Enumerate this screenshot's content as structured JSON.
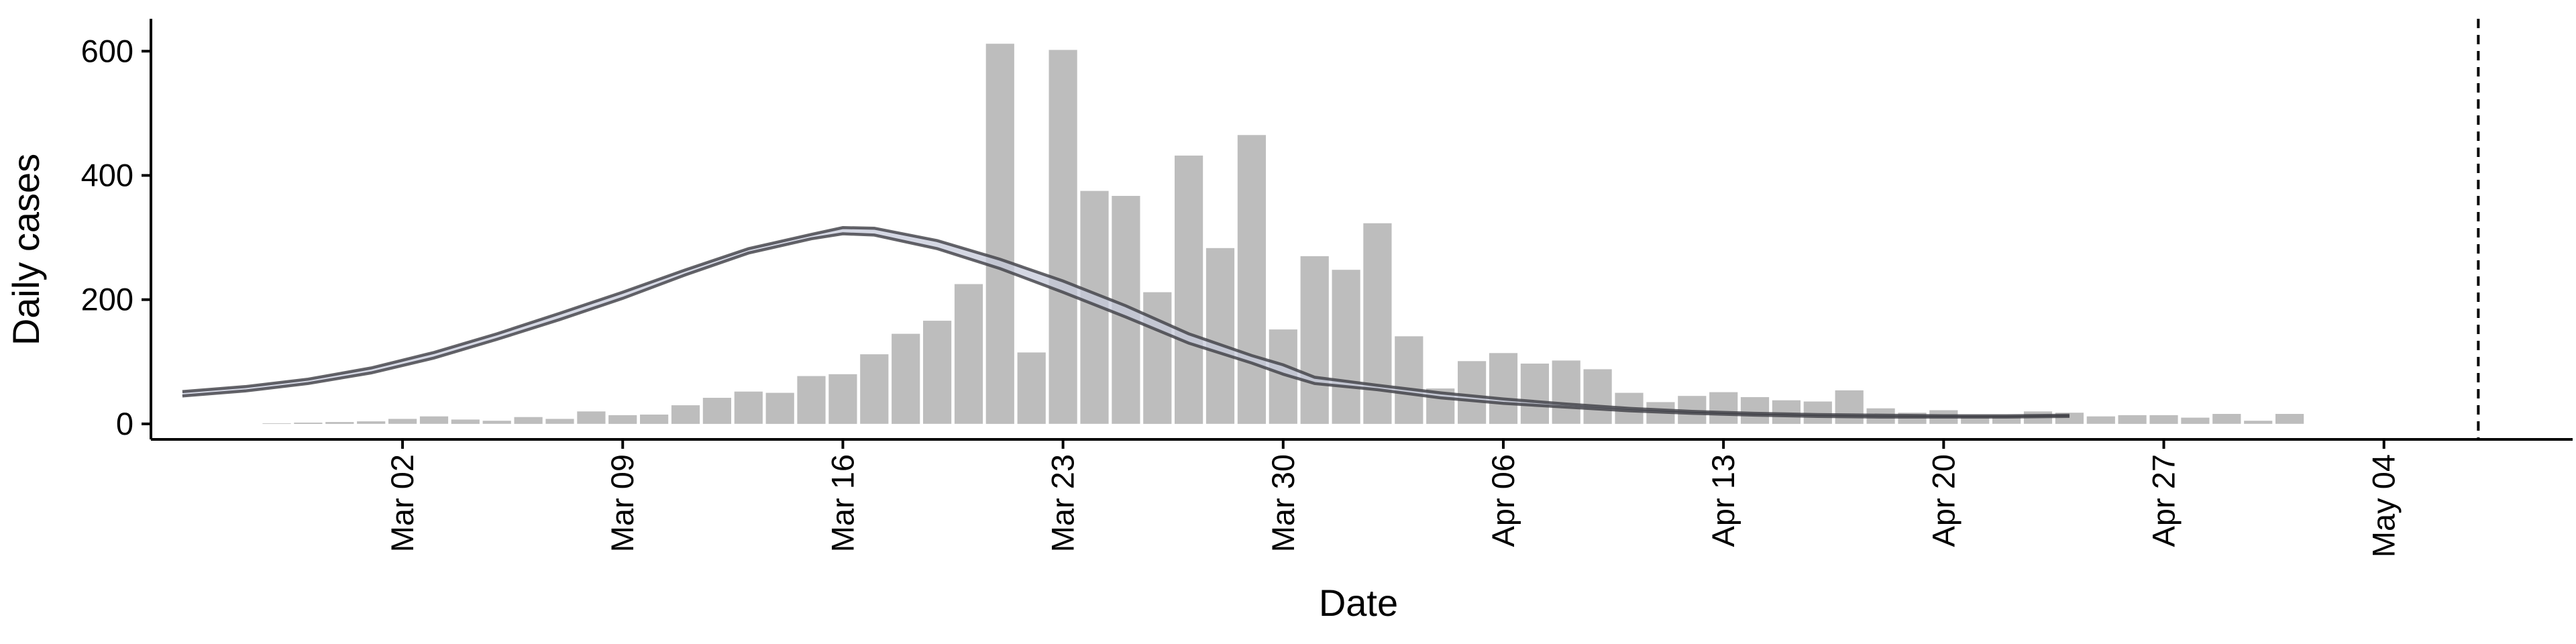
{
  "chart_data": {
    "type": "bar",
    "title": "",
    "xlabel": "Date",
    "ylabel": "Daily cases",
    "ylim": [
      -25,
      650
    ],
    "y_ticks": [
      0,
      200,
      400,
      600
    ],
    "x_range_day": [
      -6,
      71
    ],
    "x_ticks": [
      {
        "day": 2,
        "label": "Mar 02"
      },
      {
        "day": 9,
        "label": "Mar 09"
      },
      {
        "day": 16,
        "label": "Mar 16"
      },
      {
        "day": 23,
        "label": "Mar 23"
      },
      {
        "day": 30,
        "label": "Mar 30"
      },
      {
        "day": 37,
        "label": "Apr 06"
      },
      {
        "day": 44,
        "label": "Apr 13"
      },
      {
        "day": 51,
        "label": "Apr 20"
      },
      {
        "day": 58,
        "label": "Apr 27"
      },
      {
        "day": 65,
        "label": "May 04"
      }
    ],
    "x_tick_label_rotation": "vertical",
    "grid": false,
    "bars": {
      "start_day": -2,
      "values": [
        1,
        2,
        3,
        4,
        8,
        12,
        7,
        5,
        11,
        8,
        20,
        14,
        15,
        30,
        42,
        52,
        50,
        77,
        80,
        112,
        145,
        166,
        225,
        612,
        115,
        602,
        375,
        367,
        212,
        432,
        283,
        465,
        152,
        270,
        248,
        323,
        141,
        57,
        101,
        114,
        97,
        102,
        88,
        50,
        35,
        45,
        51,
        43,
        38,
        36,
        54,
        25,
        18,
        22,
        12,
        12,
        20,
        18,
        12,
        14,
        14,
        10,
        16,
        5,
        16
      ],
      "color": "#bdbdbd"
    },
    "fit_band": {
      "day": [
        -5,
        -3,
        -1,
        1,
        3,
        5,
        7,
        9,
        11,
        13,
        15,
        16,
        17,
        19,
        21,
        23,
        25,
        27,
        29,
        30,
        31,
        33,
        35,
        37,
        39,
        41,
        43,
        45,
        47,
        49,
        51,
        53,
        55
      ],
      "upper": [
        52,
        60,
        72,
        90,
        115,
        145,
        178,
        212,
        248,
        282,
        305,
        316,
        315,
        295,
        265,
        230,
        190,
        145,
        110,
        95,
        75,
        62,
        50,
        40,
        32,
        25,
        20,
        17,
        15,
        14,
        13,
        13,
        14
      ],
      "lower": [
        45,
        53,
        65,
        82,
        106,
        136,
        168,
        202,
        240,
        275,
        298,
        306,
        304,
        282,
        250,
        212,
        172,
        130,
        98,
        80,
        65,
        55,
        42,
        33,
        27,
        21,
        17,
        14,
        12,
        11,
        11,
        11,
        12
      ],
      "color": "#3d3d44",
      "fill": "#c5c9da"
    },
    "vline_day": 68,
    "vline_style": "dashed"
  }
}
